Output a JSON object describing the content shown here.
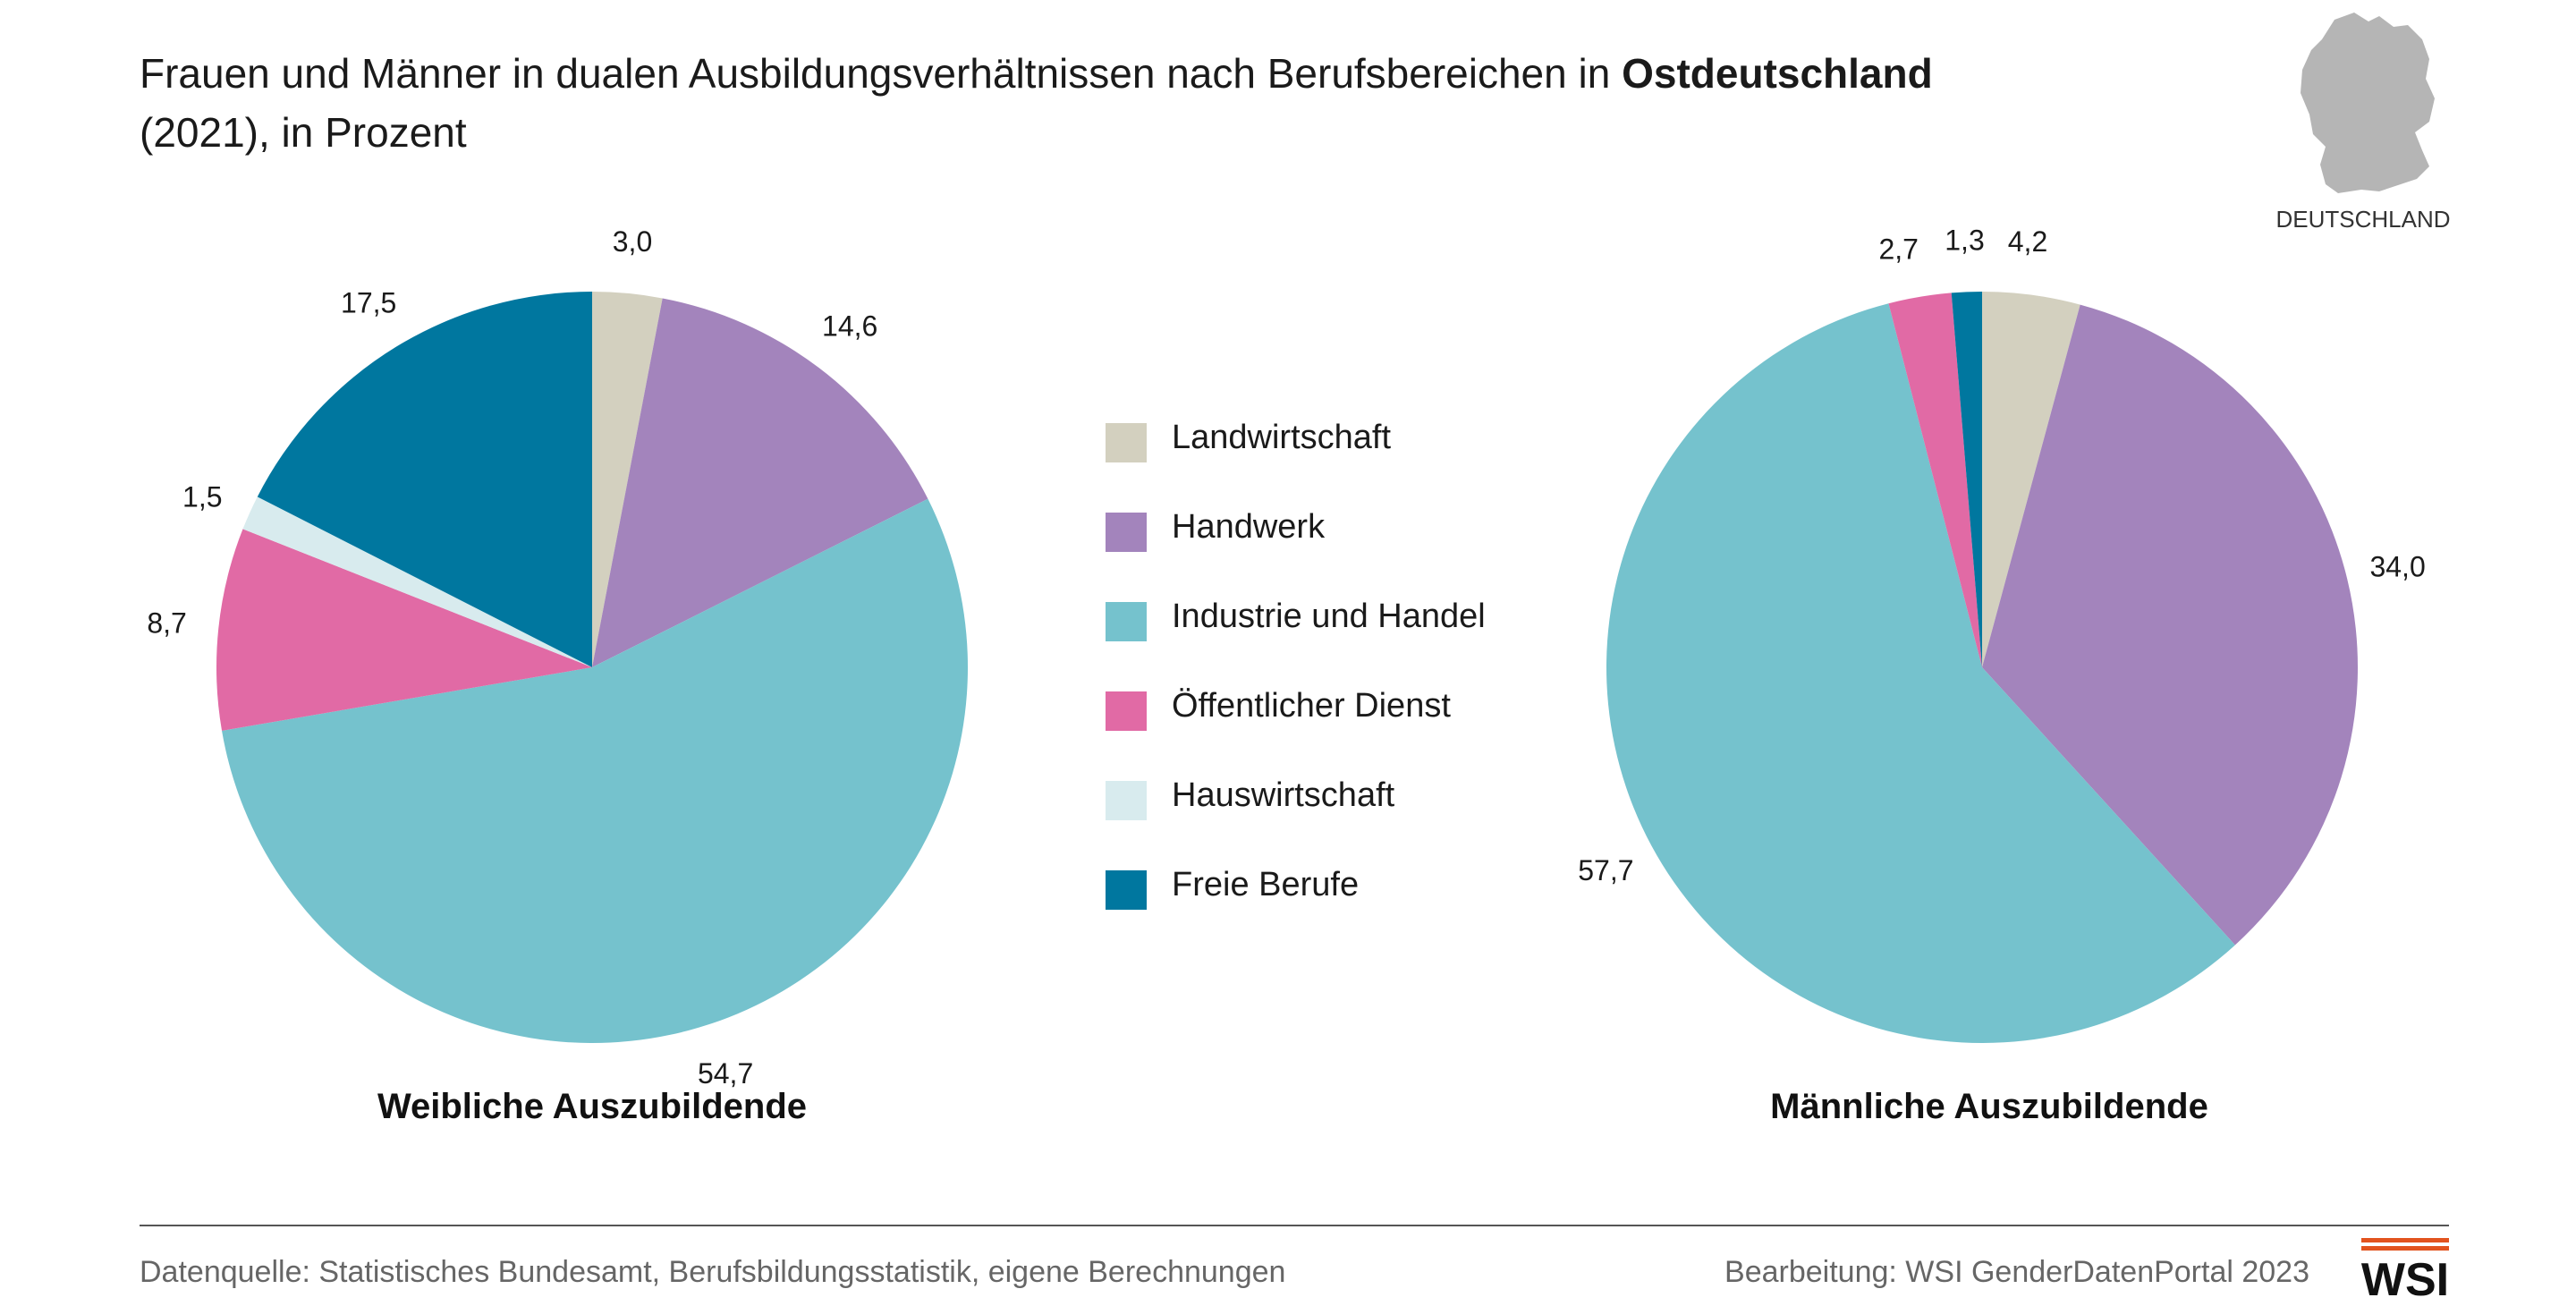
{
  "header": {
    "title_part1": "Frauen und Männer in dualen Ausbildungsverhältnissen nach Berufsbereichen in ",
    "title_bold": "Ostdeutschland",
    "title_line2": "(2021), in Prozent"
  },
  "map": {
    "label": "DEUTSCHLAND"
  },
  "colors": {
    "landwirtschaft": "#d3d0bf",
    "handwerk": "#a384bc",
    "industrie": "#75c2cd",
    "oeffentlich": "#e16aa5",
    "hauswirtschaft": "#d8ebee",
    "freie": "#0081b0",
    "logo_bar": "#e2531e",
    "divider": "#555555",
    "map": "#b5b5b5"
  },
  "legend": [
    {
      "label": "Landwirtschaft",
      "color": "#d3d0bf"
    },
    {
      "label": "Handwerk",
      "color": "#a384bc"
    },
    {
      "label": "Industrie und Handel",
      "color": "#75c2cd"
    },
    {
      "label": "Öffentlicher Dienst",
      "color": "#e16aa5"
    },
    {
      "label": "Hauswirtschaft",
      "color": "#d8ebee"
    },
    {
      "label": "Freie Berufe",
      "color": "#00779f"
    }
  ],
  "chart_data": [
    {
      "type": "pie",
      "title": "Weibliche Auszubildende",
      "categories": [
        "Landwirtschaft",
        "Handwerk",
        "Industrie und Handel",
        "Öffentlicher Dienst",
        "Hauswirtschaft",
        "Freie Berufe"
      ],
      "values": [
        3.0,
        14.6,
        54.7,
        8.7,
        1.5,
        17.5
      ],
      "labels": [
        "3,0",
        "14,6",
        "54,7",
        "8,7",
        "1,5",
        "17,5"
      ],
      "start": "12 o'clock",
      "direction": "clockwise"
    },
    {
      "type": "pie",
      "title": "Männliche Auszubildende",
      "categories": [
        "Landwirtschaft",
        "Handwerk",
        "Industrie und Handel",
        "Öffentlicher Dienst",
        "Hauswirtschaft",
        "Freie Berufe"
      ],
      "values": [
        4.2,
        34.0,
        57.7,
        2.7,
        0.0,
        1.3
      ],
      "labels": [
        "4,2",
        "34,0",
        "57,7",
        "2,7",
        "",
        "1,3"
      ],
      "start": "12 o'clock",
      "direction": "clockwise"
    }
  ],
  "footer": {
    "source": "Datenquelle: Statistisches Bundesamt, Berufsbildungsstatistik, eigene Berechnungen",
    "credit": "Bearbeitung: WSI GenderDatenPortal 2023",
    "logo": "WSI"
  }
}
